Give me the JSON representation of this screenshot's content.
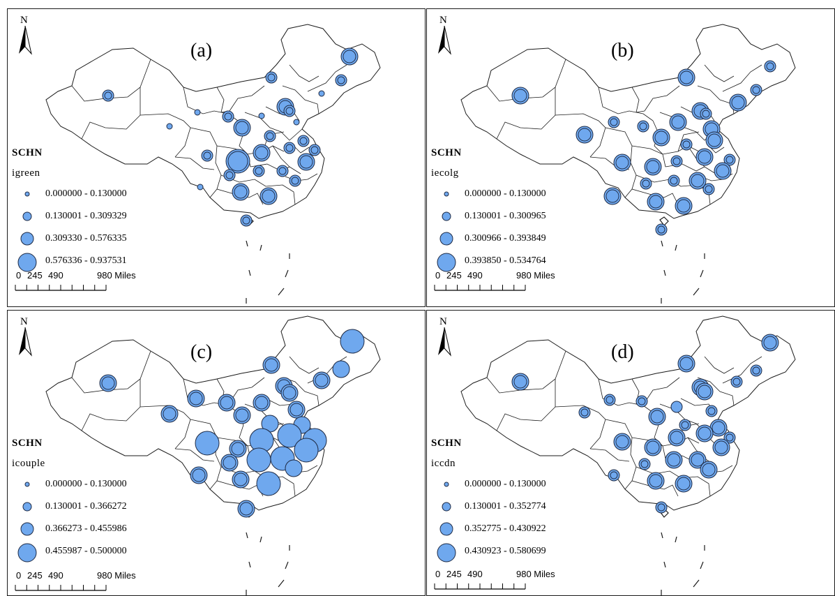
{
  "north_arrow_label": "N",
  "scale": {
    "ticks": [
      "0",
      "245",
      "490"
    ],
    "end_label": "980 Miles"
  },
  "legend_title": "SCHN",
  "colors": {
    "symbol_fill": "#6fa8ee",
    "symbol_stroke": "#1e2a44",
    "boundary": "#1a1a1a"
  },
  "panels": [
    {
      "label": "(a)",
      "field": "igreen",
      "classes": [
        "0.000000 - 0.130000",
        "0.130001 - 0.309329",
        "0.309330 - 0.576335",
        "0.576336 - 0.937531"
      ]
    },
    {
      "label": "(b)",
      "field": "iecolg",
      "classes": [
        "0.000000 - 0.130000",
        "0.130001 - 0.300965",
        "0.300966 - 0.393849",
        "0.393850 - 0.534764"
      ]
    },
    {
      "label": "(c)",
      "field": "icouple",
      "classes": [
        "0.000000 - 0.130000",
        "0.130001 - 0.366272",
        "0.366273 - 0.455986",
        "0.455987 - 0.500000"
      ]
    },
    {
      "label": "(d)",
      "field": "iccdn",
      "classes": [
        "0.000000 - 0.130000",
        "0.130001 - 0.352774",
        "0.352775 - 0.430922",
        "0.430923 - 0.580699"
      ]
    }
  ]
}
